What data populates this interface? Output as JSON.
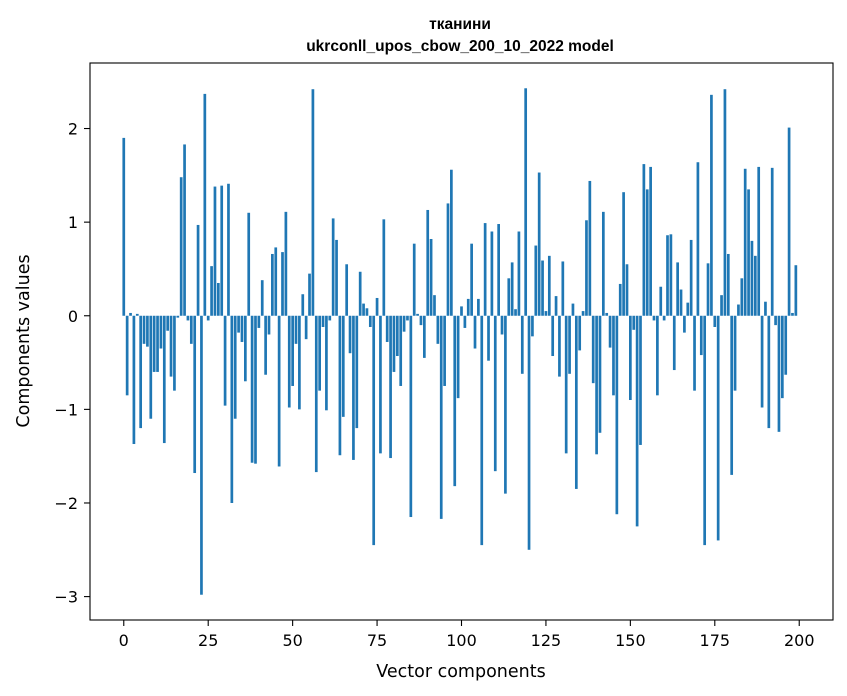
{
  "chart_data": {
    "type": "bar",
    "title_line1": "тканини",
    "title_line2": "ukrconll_upos_cbow_200_10_2022 model",
    "xlabel": "Vector components",
    "ylabel": "Components values",
    "xlim": [
      -10,
      210
    ],
    "ylim": [
      -3.25,
      2.7
    ],
    "xticks": [
      0,
      25,
      50,
      75,
      100,
      125,
      150,
      175,
      200
    ],
    "yticks": [
      -3,
      -2,
      -1,
      0,
      1,
      2
    ],
    "bar_color": "#1f77b4",
    "grid": false,
    "values": [
      1.9,
      -0.85,
      0.03,
      -1.37,
      0.02,
      -1.2,
      -0.3,
      -0.33,
      -1.1,
      -0.6,
      -0.6,
      -0.35,
      -1.36,
      -0.16,
      -0.65,
      -0.8,
      -0.02,
      1.48,
      1.83,
      -0.05,
      -0.3,
      -1.68,
      0.97,
      -2.98,
      2.37,
      -0.05,
      0.53,
      1.38,
      0.35,
      1.39,
      -0.96,
      1.41,
      -2.0,
      -1.1,
      -0.18,
      -0.28,
      -0.7,
      1.1,
      -1.57,
      -1.58,
      -0.13,
      0.38,
      -0.63,
      -0.2,
      0.66,
      0.73,
      -1.61,
      0.68,
      1.11,
      -0.98,
      -0.75,
      -0.3,
      -1.0,
      0.23,
      -0.25,
      0.45,
      2.42,
      -1.67,
      -0.8,
      -0.12,
      -1.01,
      -0.05,
      1.04,
      0.81,
      -1.49,
      -1.08,
      0.55,
      -0.4,
      -1.54,
      -1.2,
      0.47,
      0.13,
      0.08,
      -0.12,
      -2.45,
      0.19,
      -1.47,
      1.03,
      -0.28,
      -1.52,
      -0.6,
      -0.43,
      -0.75,
      -0.17,
      -0.05,
      -2.15,
      0.77,
      0.02,
      -0.1,
      -0.45,
      1.13,
      0.82,
      0.22,
      -0.3,
      -2.17,
      -0.75,
      1.2,
      1.56,
      -1.82,
      -0.88,
      0.1,
      -0.13,
      0.18,
      0.77,
      -0.35,
      0.18,
      -2.45,
      0.99,
      -0.48,
      0.9,
      -1.66,
      0.98,
      -0.2,
      -1.9,
      0.4,
      0.57,
      0.07,
      0.9,
      -0.62,
      2.43,
      -2.5,
      -0.22,
      0.75,
      1.53,
      0.59,
      0.05,
      0.64,
      -0.43,
      0.21,
      -0.65,
      0.58,
      -1.47,
      -0.62,
      0.13,
      -1.85,
      -0.37,
      0.05,
      1.02,
      1.44,
      -0.72,
      -1.48,
      -1.25,
      1.11,
      0.03,
      -0.34,
      -0.85,
      -2.12,
      0.34,
      1.32,
      0.55,
      -0.9,
      -0.15,
      -2.25,
      -1.38,
      1.62,
      1.35,
      1.59,
      -0.05,
      -0.85,
      0.31,
      -0.05,
      0.86,
      0.87,
      -0.58,
      0.57,
      0.28,
      -0.18,
      0.14,
      0.81,
      -0.8,
      1.64,
      -0.42,
      -2.45,
      0.56,
      2.36,
      -0.12,
      -2.4,
      0.22,
      2.42,
      0.66,
      -1.7,
      -0.8,
      0.12,
      0.4,
      1.57,
      1.35,
      0.8,
      0.64,
      1.59,
      -0.98,
      0.15,
      -1.2,
      1.58,
      -0.1,
      -1.24,
      -0.88,
      -0.63,
      2.01,
      0.03,
      0.54
    ]
  }
}
